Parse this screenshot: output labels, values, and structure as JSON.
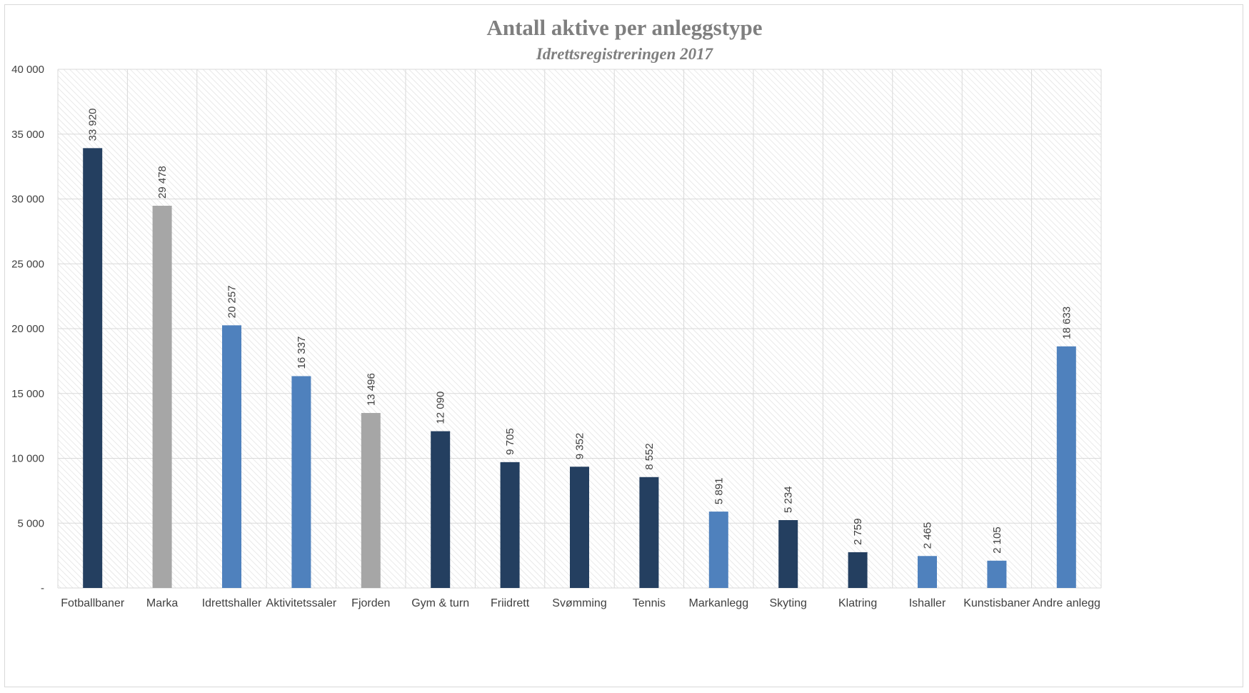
{
  "chart_data": {
    "type": "bar",
    "title": "Antall aktive per anleggstype",
    "subtitle": "Idrettsregistreringen 2017",
    "xlabel": "",
    "ylabel": "",
    "ylim": [
      0,
      40000
    ],
    "yticks": [
      0,
      5000,
      10000,
      15000,
      20000,
      25000,
      30000,
      35000,
      40000
    ],
    "ytick_labels": [
      "-",
      "5 000",
      "10 000",
      "15 000",
      "20 000",
      "25 000",
      "30 000",
      "35 000",
      "40 000"
    ],
    "grid": true,
    "legend": "none",
    "categories": [
      "Fotballbaner",
      "Marka",
      "Idrettshaller",
      "Aktivitetssaler",
      "Fjorden",
      "Gym & turn",
      "Friidrett",
      "Svømming",
      "Tennis",
      "Markanlegg",
      "Skyting",
      "Klatring",
      "Ishaller",
      "Kunstisbaner",
      "Andre anlegg"
    ],
    "values": [
      33920,
      29478,
      20257,
      16337,
      13496,
      12090,
      9705,
      9352,
      8552,
      5891,
      5234,
      2759,
      2465,
      2105,
      18633
    ],
    "value_labels": [
      "33 920",
      "29 478",
      "20 257",
      "16 337",
      "13 496",
      "12 090",
      "9 705",
      "9 352",
      "8 552",
      "5 891",
      "5 234",
      "2 759",
      "2 465",
      "2 105",
      "18 633"
    ],
    "bar_colors": [
      "#243f60",
      "#a6a6a6",
      "#4f81bd",
      "#4f81bd",
      "#a6a6a6",
      "#243f60",
      "#243f60",
      "#243f60",
      "#243f60",
      "#4f81bd",
      "#243f60",
      "#243f60",
      "#4f81bd",
      "#4f81bd",
      "#4f81bd"
    ]
  }
}
